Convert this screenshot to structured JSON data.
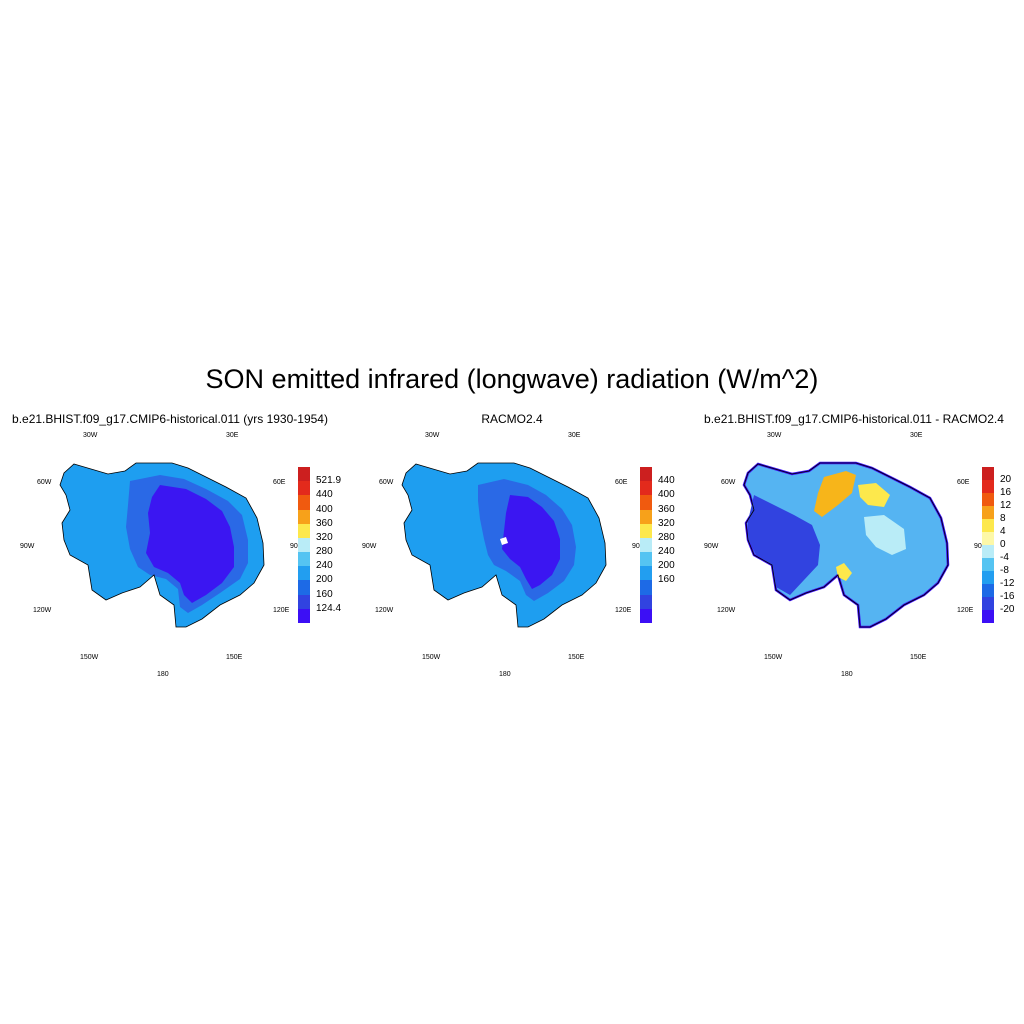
{
  "title": "SON emitted infrared (longwave) radiation (W/m^2)",
  "lon_labels": {
    "w30": "30W",
    "e30": "30E",
    "w60": "60W",
    "e60": "60E",
    "w90": "90W",
    "e90": "90E",
    "w120": "120W",
    "e120": "120E",
    "w150": "150W",
    "e150": "150E",
    "s180": "180"
  },
  "panels": [
    {
      "title": "b.e21.BHIST.f09_g17.CMIP6-historical.011 (yrs 1930-1954)",
      "colorbar": {
        "colors": [
          "#cc1f1f",
          "#e32a1c",
          "#f05a0f",
          "#f7a11a",
          "#fde84c",
          "#b9ecf7",
          "#55c4f2",
          "#229ef0",
          "#1d6ae6",
          "#3143e0",
          "#3c0ff5"
        ],
        "labels": [
          "521.9",
          "440",
          "400",
          "360",
          "320",
          "280",
          "240",
          "200",
          "160",
          "124.4"
        ]
      },
      "fills": {
        "outer": "#1e9ef0",
        "ring": "#2a69e6",
        "interior": "#3b16f2",
        "edge": "#55c4f2"
      }
    },
    {
      "title": "RACMO2.4",
      "colorbar": {
        "colors": [
          "#cc1f1f",
          "#e32a1c",
          "#f05a0f",
          "#f7a11a",
          "#fde84c",
          "#b9ecf7",
          "#55c4f2",
          "#229ef0",
          "#1d6ae6",
          "#3143e0",
          "#3c0ff5"
        ],
        "labels": [
          "440",
          "400",
          "360",
          "320",
          "280",
          "240",
          "200",
          "160"
        ]
      },
      "fills": {
        "outer": "#1e9ef0",
        "ring": "#2a69e6",
        "interior": "#3b16f2",
        "edge": "#55c4f2"
      }
    },
    {
      "title": "b.e21.BHIST.f09_g17.CMIP6-historical.011 - RACMO2.4",
      "colorbar": {
        "colors": [
          "#cc1f1f",
          "#e32a1c",
          "#f05a0f",
          "#f7a11a",
          "#fde84c",
          "#fdf8a8",
          "#b9ecf7",
          "#55c4f2",
          "#229ef0",
          "#1d6ae6",
          "#3143e0",
          "#3c0ff5"
        ],
        "labels": [
          "20",
          "16",
          "12",
          "8",
          "4",
          "0",
          "-4",
          "-8",
          "-12",
          "-16",
          "-20"
        ]
      },
      "fills": {
        "base": "#55b4f2",
        "west": "#3143e0",
        "warm": "#f7b51a",
        "yellow": "#fde84c",
        "light": "#b9ecf7",
        "edge": "#3c0ff5"
      }
    }
  ]
}
